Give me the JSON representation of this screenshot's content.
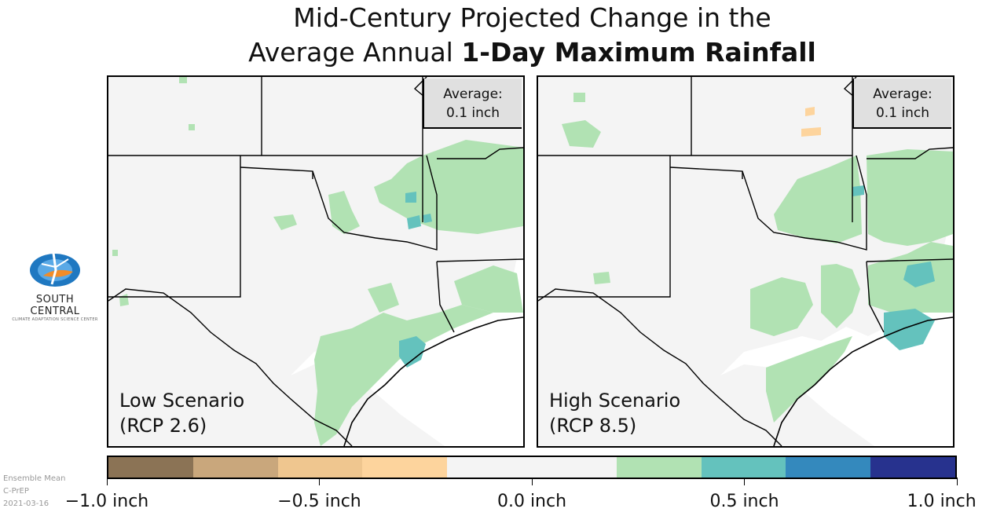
{
  "title": {
    "line1": "Mid-Century Projected Change in the",
    "line2_prefix": "Average Annual ",
    "line2_bold": "1-Day Maximum Rainfall"
  },
  "panels": [
    {
      "id": "low",
      "average_label": "Average:",
      "average_value": "0.1 inch",
      "scenario_line1": "Low Scenario",
      "scenario_line2": "(RCP 2.6)"
    },
    {
      "id": "high",
      "average_label": "Average:",
      "average_value": "0.1 inch",
      "scenario_line1": "High Scenario",
      "scenario_line2": "(RCP 8.5)"
    }
  ],
  "legend": {
    "colors": [
      "#8b7355",
      "#c9a77c",
      "#efc68f",
      "#fdd49d",
      "#f4f4f4",
      "#f4f4f4",
      "#b1e2b3",
      "#64c2bd",
      "#3489bd",
      "#27328e"
    ],
    "range": [
      -1.0,
      1.0
    ],
    "ticks": [
      {
        "value": -1.0,
        "label": "−1.0 inch"
      },
      {
        "value": -0.5,
        "label": "−0.5 inch"
      },
      {
        "value": 0.0,
        "label": "0.0 inch"
      },
      {
        "value": 0.5,
        "label": "0.5 inch"
      },
      {
        "value": 1.0,
        "label": "1.0 inch"
      }
    ]
  },
  "logo": {
    "name": "SOUTH CENTRAL",
    "subtitle": "CLIMATE ADAPTATION SCIENCE CENTER"
  },
  "meta": {
    "line1": "Ensemble Mean",
    "line2": "C-PrEP",
    "line3": "2021-03-16"
  }
}
